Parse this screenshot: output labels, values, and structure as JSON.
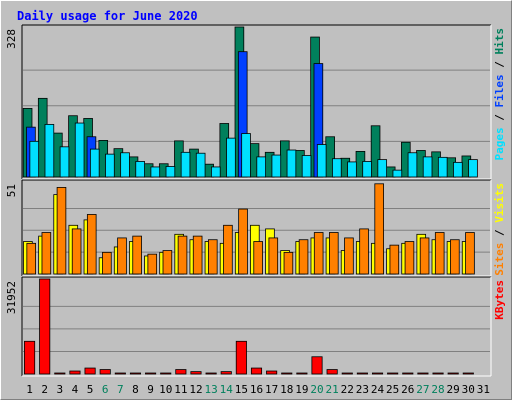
{
  "title": "Daily usage for June 2020",
  "colors": {
    "hits": "#00805c",
    "files": "#0040ff",
    "pages": "#00e0ff",
    "visits": "#ffff00",
    "sites": "#ff8000",
    "kbytes": "#ff0000",
    "weekend_label": "#00805c",
    "weekday_label": "#000000",
    "title": "#0000ff"
  },
  "chart_data": [
    {
      "type": "bar",
      "panel": "hits-files-pages",
      "ymax_label": "328",
      "ylim": [
        0,
        328
      ],
      "side_labels": [
        {
          "text": "Hits",
          "color": "#00805c"
        },
        {
          "text": "Files",
          "color": "#0040ff"
        },
        {
          "text": "Pages",
          "color": "#00e0ff"
        }
      ],
      "side_separator": "/",
      "categories": [
        "1",
        "2",
        "3",
        "4",
        "5",
        "6",
        "7",
        "8",
        "9",
        "10",
        "11",
        "12",
        "13",
        "14",
        "15",
        "16",
        "17",
        "18",
        "19",
        "20",
        "21",
        "22",
        "23",
        "24",
        "25",
        "26",
        "27",
        "28",
        "29",
        "30",
        "31"
      ],
      "series": [
        {
          "name": "Hits",
          "values": [
            150,
            172,
            96,
            134,
            128,
            80,
            62,
            44,
            29,
            29,
            79,
            61,
            28,
            117,
            328,
            73,
            54,
            79,
            58,
            306,
            88,
            41,
            56,
            112,
            22,
            76,
            58,
            55,
            42,
            46,
            0
          ]
        },
        {
          "name": "Files",
          "values": [
            109,
            0,
            0,
            0,
            88,
            0,
            0,
            0,
            0,
            0,
            0,
            0,
            0,
            0,
            274,
            0,
            0,
            0,
            0,
            248,
            0,
            0,
            0,
            0,
            0,
            0,
            0,
            0,
            0,
            0,
            0
          ]
        },
        {
          "name": "Pages",
          "values": [
            78,
            115,
            66,
            118,
            61,
            50,
            53,
            34,
            22,
            23,
            54,
            52,
            22,
            85,
            95,
            44,
            48,
            59,
            47,
            71,
            40,
            33,
            34,
            38,
            15,
            53,
            44,
            43,
            32,
            38,
            0
          ]
        }
      ]
    },
    {
      "type": "bar",
      "panel": "visits-sites",
      "ymax_label": "51",
      "ylim": [
        0,
        51
      ],
      "side_labels": [
        {
          "text": "Visits",
          "color": "#ffff00"
        },
        {
          "text": "Sites",
          "color": "#ff8000"
        }
      ],
      "side_separator": "/",
      "categories": [
        "1",
        "2",
        "3",
        "4",
        "5",
        "6",
        "7",
        "8",
        "9",
        "10",
        "11",
        "12",
        "13",
        "14",
        "15",
        "16",
        "17",
        "18",
        "19",
        "20",
        "21",
        "22",
        "23",
        "24",
        "25",
        "26",
        "27",
        "28",
        "29",
        "30",
        "31"
      ],
      "series": [
        {
          "name": "Visits",
          "values": [
            18,
            21,
            44,
            27,
            30,
            9,
            15,
            18,
            10,
            12,
            22,
            19,
            18,
            17,
            23,
            27,
            25,
            13,
            18,
            20,
            20,
            13,
            18,
            17,
            14,
            17,
            22,
            19,
            18,
            18,
            0
          ]
        },
        {
          "name": "Sites",
          "values": [
            17,
            23,
            48,
            25,
            33,
            12,
            20,
            21,
            11,
            13,
            21,
            21,
            19,
            27,
            36,
            18,
            20,
            12,
            19,
            23,
            23,
            20,
            25,
            50,
            16,
            18,
            20,
            23,
            19,
            23,
            0
          ]
        }
      ]
    },
    {
      "type": "bar",
      "panel": "kbytes",
      "ymax_label": "31952",
      "ylim": [
        0,
        31952
      ],
      "side_labels": [
        {
          "text": "KBytes",
          "color": "#ff0000"
        }
      ],
      "side_separator": "",
      "categories": [
        "1",
        "2",
        "3",
        "4",
        "5",
        "6",
        "7",
        "8",
        "9",
        "10",
        "11",
        "12",
        "13",
        "14",
        "15",
        "16",
        "17",
        "18",
        "19",
        "20",
        "21",
        "22",
        "23",
        "24",
        "25",
        "26",
        "27",
        "28",
        "29",
        "30",
        "31"
      ],
      "series": [
        {
          "name": "KBytes",
          "values": [
            11000,
            31952,
            200,
            1000,
            2000,
            1500,
            200,
            200,
            200,
            200,
            1500,
            800,
            300,
            800,
            11000,
            2000,
            1000,
            300,
            300,
            5800,
            1500,
            200,
            200,
            200,
            200,
            200,
            200,
            200,
            200,
            200,
            0
          ]
        }
      ]
    }
  ],
  "x_axis": {
    "labels": [
      "1",
      "2",
      "3",
      "4",
      "5",
      "6",
      "7",
      "8",
      "9",
      "10",
      "11",
      "12",
      "13",
      "14",
      "15",
      "16",
      "17",
      "18",
      "19",
      "20",
      "21",
      "22",
      "23",
      "24",
      "25",
      "26",
      "27",
      "28",
      "29",
      "30",
      "31"
    ],
    "weekend": [
      6,
      7,
      13,
      14,
      20,
      21,
      27,
      28
    ]
  }
}
